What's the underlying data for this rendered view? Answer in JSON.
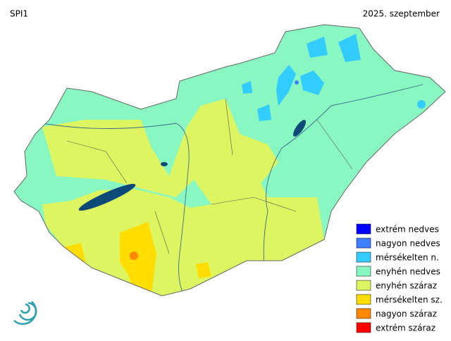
{
  "header": {
    "title": "SPI1",
    "date": "2025. szeptember"
  },
  "legend": {
    "items": [
      {
        "label": "extrém nedves",
        "color": "#0000ff"
      },
      {
        "label": "nagyon nedves",
        "color": "#3f7fff"
      },
      {
        "label": "mérsékelten n.",
        "color": "#33ccff"
      },
      {
        "label": "enyhén nedves",
        "color": "#88f7c2"
      },
      {
        "label": "enyhén száraz",
        "color": "#ddf560"
      },
      {
        "label": "mérsékelten sz.",
        "color": "#ffdd00"
      },
      {
        "label": "nagyon száraz",
        "color": "#ff8800"
      },
      {
        "label": "extrém száraz",
        "color": "#ff0000"
      }
    ]
  }
}
